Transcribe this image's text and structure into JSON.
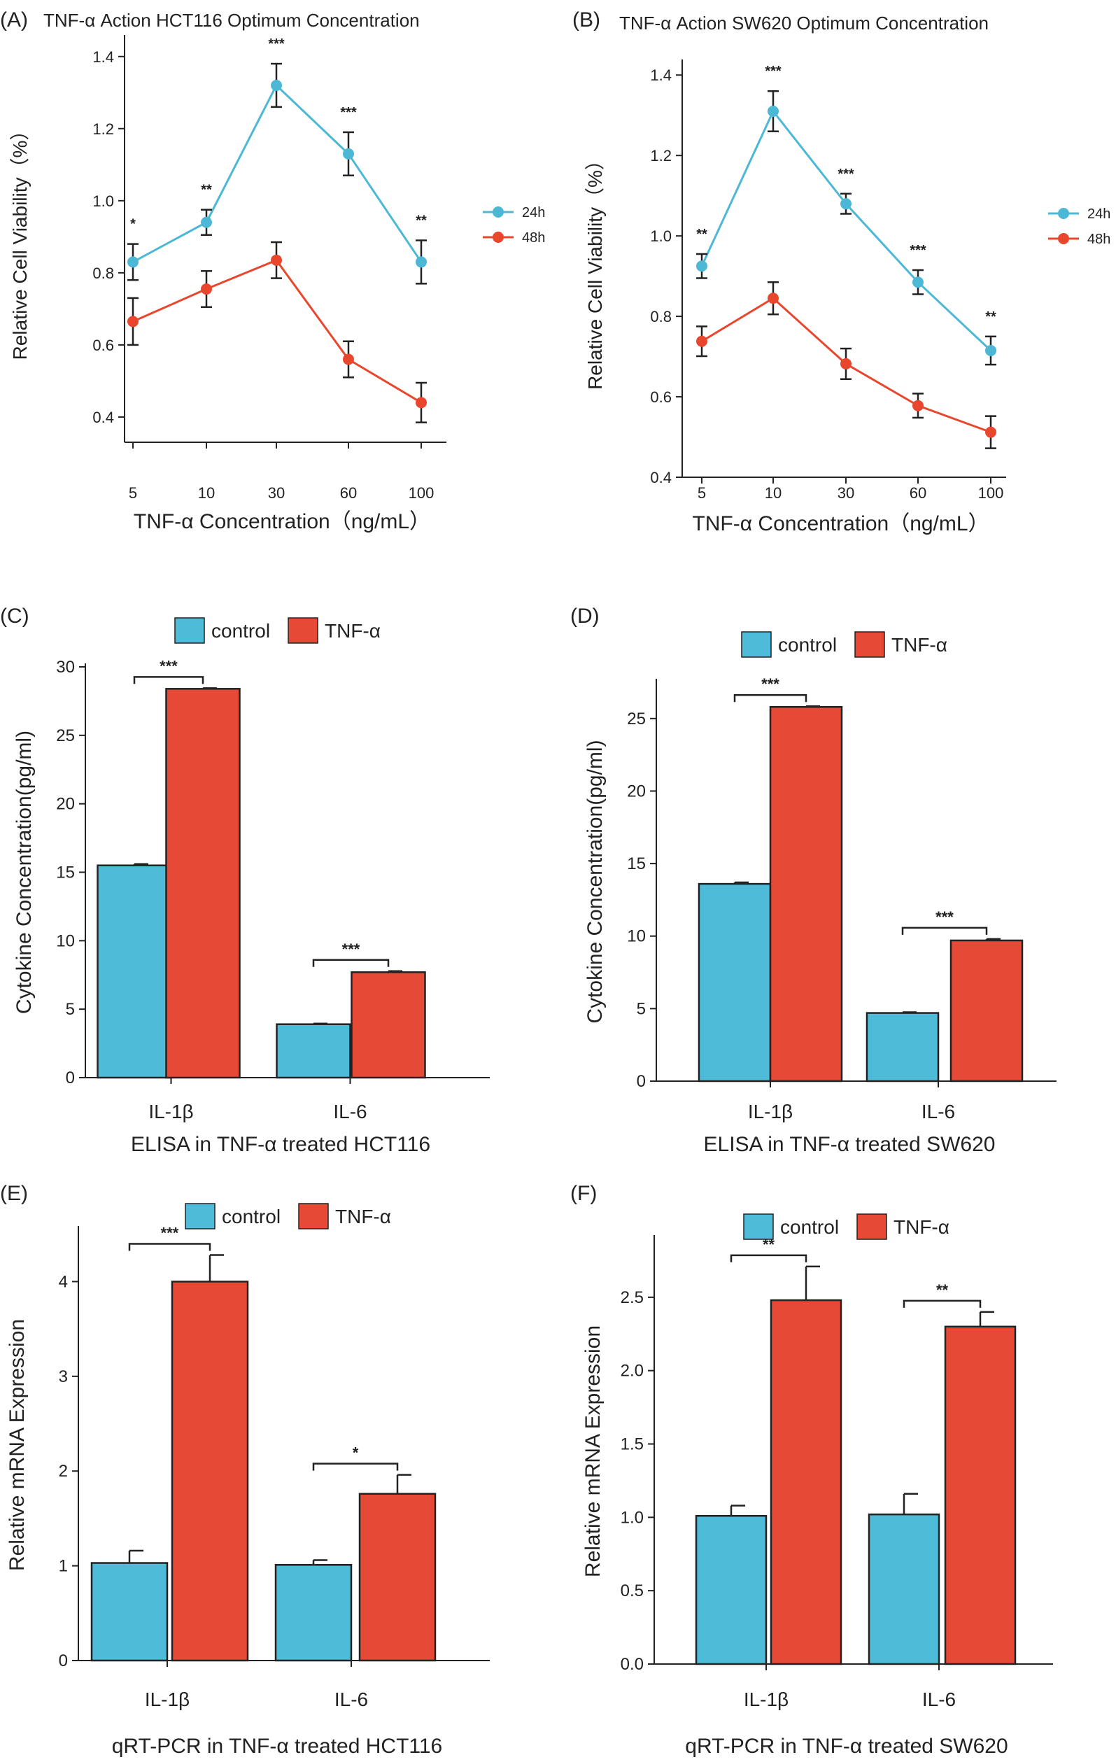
{
  "colors": {
    "c24": "#4cb8d6",
    "c48": "#e8472e",
    "control": "#4ebbd8",
    "tnf": "#e64a36",
    "axis": "#222222"
  },
  "chart_data": [
    {
      "id": "A",
      "type": "line",
      "panel_label": "(A)",
      "title": "TNF-α Action HCT116 Optimum Concentration",
      "xlabel": "TNF-α Concentration（ng/mL）",
      "ylabel": "Relative Cell Viability（%）",
      "categories": [
        "5",
        "10",
        "30",
        "60",
        "100"
      ],
      "ylim": [
        0.33,
        1.45
      ],
      "yticks": [
        0.4,
        0.6,
        0.8,
        1.0,
        1.2,
        1.4
      ],
      "yticklabels": [
        "0.4",
        "0.6",
        "0.8",
        "1.0",
        "1.2",
        "1.4"
      ],
      "series": [
        {
          "name": "24h",
          "color": "#4cb8d6",
          "values": [
            0.83,
            0.94,
            1.32,
            1.13,
            0.83
          ],
          "errors": [
            0.05,
            0.035,
            0.06,
            0.06,
            0.06
          ]
        },
        {
          "name": "48h",
          "color": "#e8472e",
          "values": [
            0.665,
            0.755,
            0.835,
            0.56,
            0.44
          ],
          "errors": [
            0.065,
            0.05,
            0.05,
            0.05,
            0.055
          ]
        }
      ],
      "significance": [
        "*",
        "**",
        "***",
        "***",
        "**"
      ]
    },
    {
      "id": "B",
      "type": "line",
      "panel_label": "(B)",
      "title": "TNF-α Action SW620 Optimum Concentration",
      "xlabel": "TNF-α Concentration（ng/mL）",
      "ylabel": "Relative Cell Viability（%）",
      "categories": [
        "5",
        "10",
        "30",
        "60",
        "100"
      ],
      "ylim": [
        0.4,
        1.43
      ],
      "yticks": [
        0.4,
        0.6,
        0.8,
        1.0,
        1.2,
        1.4
      ],
      "yticklabels": [
        "0.4",
        "0.6",
        "0.8",
        "1.0",
        "1.2",
        "1.4"
      ],
      "series": [
        {
          "name": "24h",
          "color": "#4cb8d6",
          "values": [
            0.925,
            1.31,
            1.08,
            0.885,
            0.715
          ],
          "errors": [
            0.03,
            0.05,
            0.025,
            0.03,
            0.035
          ]
        },
        {
          "name": "48h",
          "color": "#e8472e",
          "values": [
            0.738,
            0.845,
            0.682,
            0.578,
            0.512
          ],
          "errors": [
            0.037,
            0.04,
            0.038,
            0.03,
            0.04
          ]
        }
      ],
      "significance": [
        "**",
        "***",
        "***",
        "***",
        "**"
      ]
    },
    {
      "id": "C",
      "type": "bar",
      "panel_label": "(C)",
      "title": "ELISA in TNF-α treated HCT116",
      "xlabel": "",
      "ylabel": "Cytokine Concentration(pg/ml)",
      "categories": [
        "IL-1β",
        "IL-6"
      ],
      "ylim": [
        0,
        30
      ],
      "yticks": [
        0,
        5,
        10,
        15,
        20,
        25,
        30
      ],
      "yticklabels": [
        "0",
        "5",
        "10",
        "15",
        "20",
        "25",
        "30"
      ],
      "legend": [
        "control",
        "TNF-α"
      ],
      "series": [
        {
          "name": "control",
          "values": [
            15.5,
            3.9
          ],
          "errors": [
            0.1,
            0.05
          ]
        },
        {
          "name": "TNF-α",
          "values": [
            28.4,
            7.7
          ],
          "errors": [
            0.05,
            0.08
          ]
        }
      ],
      "significance": [
        "***",
        "***"
      ]
    },
    {
      "id": "D",
      "type": "bar",
      "panel_label": "(D)",
      "title": "ELISA in TNF-α treated SW620",
      "xlabel": "",
      "ylabel": "Cytokine Concentration(pg/ml)",
      "categories": [
        "IL-1β",
        "IL-6"
      ],
      "ylim": [
        0,
        27.5
      ],
      "yticks": [
        0,
        5,
        10,
        15,
        20,
        25
      ],
      "yticklabels": [
        "0",
        "5",
        "10",
        "15",
        "20",
        "25"
      ],
      "legend": [
        "control",
        "TNF-α"
      ],
      "series": [
        {
          "name": "control",
          "values": [
            13.6,
            4.7
          ],
          "errors": [
            0.1,
            0.05
          ]
        },
        {
          "name": "TNF-α",
          "values": [
            25.8,
            9.7
          ],
          "errors": [
            0.05,
            0.1
          ]
        }
      ],
      "significance": [
        "***",
        "***"
      ]
    },
    {
      "id": "E",
      "type": "bar",
      "panel_label": "(E)",
      "title": "qRT-PCR in TNF-α treated HCT116",
      "xlabel": "",
      "ylabel": "Relative mRNA Expression",
      "categories": [
        "IL-1β",
        "IL-6"
      ],
      "ylim": [
        0,
        4.55
      ],
      "yticks": [
        0,
        1,
        2,
        3,
        4
      ],
      "yticklabels": [
        "0",
        "1",
        "2",
        "3",
        "4"
      ],
      "legend": [
        "control",
        "TNF-α"
      ],
      "series": [
        {
          "name": "control",
          "values": [
            1.03,
            1.01
          ],
          "errors": [
            0.13,
            0.05
          ]
        },
        {
          "name": "TNF-α",
          "values": [
            4.0,
            1.76
          ],
          "errors": [
            0.28,
            0.2
          ]
        }
      ],
      "significance": [
        "***",
        "*"
      ]
    },
    {
      "id": "F",
      "type": "bar",
      "panel_label": "(F)",
      "title": "qRT-PCR in TNF-α treated SW620",
      "xlabel": "",
      "ylabel": "Relative mRNA Expression",
      "categories": [
        "IL-1β",
        "IL-6"
      ],
      "ylim": [
        0,
        2.9
      ],
      "yticks": [
        0.0,
        0.5,
        1.0,
        1.5,
        2.0,
        2.5
      ],
      "yticklabels": [
        "0.0",
        "0.5",
        "1.0",
        "1.5",
        "2.0",
        "2.5"
      ],
      "legend": [
        "control",
        "TNF-α"
      ],
      "series": [
        {
          "name": "control",
          "values": [
            1.01,
            1.02
          ],
          "errors": [
            0.07,
            0.14
          ]
        },
        {
          "name": "TNF-α",
          "values": [
            2.48,
            2.3
          ],
          "errors": [
            0.23,
            0.1
          ]
        }
      ],
      "significance": [
        "**",
        "**"
      ]
    }
  ]
}
